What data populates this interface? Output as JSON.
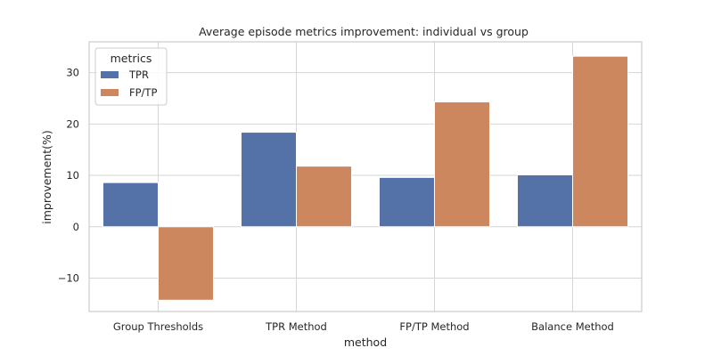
{
  "chart_data": {
    "type": "bar",
    "title": "Average episode metrics improvement: individual vs group",
    "xlabel": "method",
    "ylabel": "improvement(%)",
    "categories": [
      "Group Thresholds",
      "TPR Method",
      "FP/TP Method",
      "Balance Method"
    ],
    "series": [
      {
        "name": "TPR",
        "color": "#5572a8",
        "values": [
          8.6,
          18.4,
          9.6,
          10.1
        ]
      },
      {
        "name": "FP/TP",
        "color": "#cd875e",
        "values": [
          -14.3,
          11.8,
          24.3,
          33.2
        ]
      }
    ],
    "ylim": [
      -16.5,
      36
    ],
    "yticks": [
      -10,
      0,
      10,
      20,
      30
    ],
    "ytick_labels": [
      "−10",
      "0",
      "10",
      "20",
      "30"
    ],
    "grid": true,
    "legend": {
      "title": "metrics",
      "placement": "top-left"
    }
  }
}
